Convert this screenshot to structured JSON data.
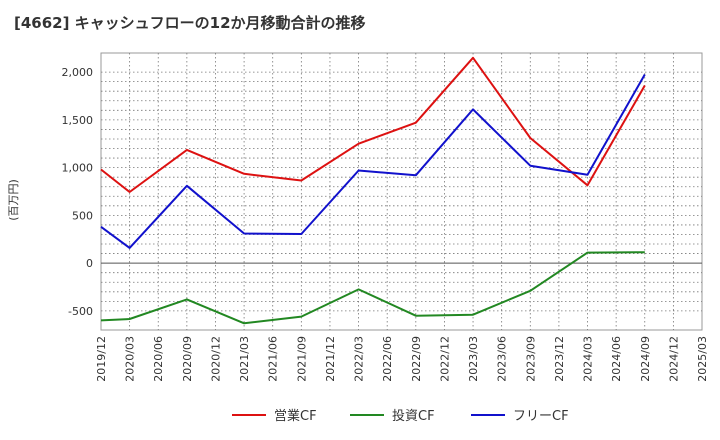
{
  "chart_data": {
    "type": "line",
    "title": "[4662]  キャッシュフローの12か月移動合計の推移",
    "ylabel": "(百万円)",
    "xlabel": "",
    "ylim": [
      -700,
      2200
    ],
    "yticks": [
      -500,
      0,
      500,
      1000,
      1500,
      2000
    ],
    "ytick_labels": [
      "-500",
      "0",
      "500",
      "1,000",
      "1,500",
      "2,000"
    ],
    "categories": [
      "2019/12",
      "2020/03",
      "2020/06",
      "2020/09",
      "2020/12",
      "2021/03",
      "2021/06",
      "2021/09",
      "2021/12",
      "2022/03",
      "2022/06",
      "2022/09",
      "2022/12",
      "2023/03",
      "2023/06",
      "2023/09",
      "2023/12",
      "2024/03",
      "2024/06",
      "2024/09",
      "2024/12",
      "2025/03"
    ],
    "grid": true,
    "legend_position": "bottom",
    "series": [
      {
        "name": "営業CF",
        "color": "#dd1111",
        "values": [
          980,
          745,
          null,
          1185,
          null,
          935,
          null,
          865,
          null,
          1250,
          null,
          1470,
          null,
          2150,
          null,
          1310,
          null,
          815,
          null,
          1860,
          null,
          null
        ]
      },
      {
        "name": "投資CF",
        "color": "#228822",
        "values": [
          -600,
          -585,
          null,
          -380,
          null,
          -630,
          null,
          -560,
          null,
          -275,
          null,
          -550,
          null,
          -540,
          null,
          -290,
          null,
          110,
          null,
          115,
          null,
          null
        ]
      },
      {
        "name": "フリーCF",
        "color": "#1111cc",
        "values": [
          380,
          160,
          null,
          810,
          null,
          310,
          null,
          305,
          null,
          970,
          null,
          920,
          null,
          1610,
          null,
          1020,
          null,
          925,
          null,
          1975,
          null,
          null
        ]
      }
    ]
  }
}
